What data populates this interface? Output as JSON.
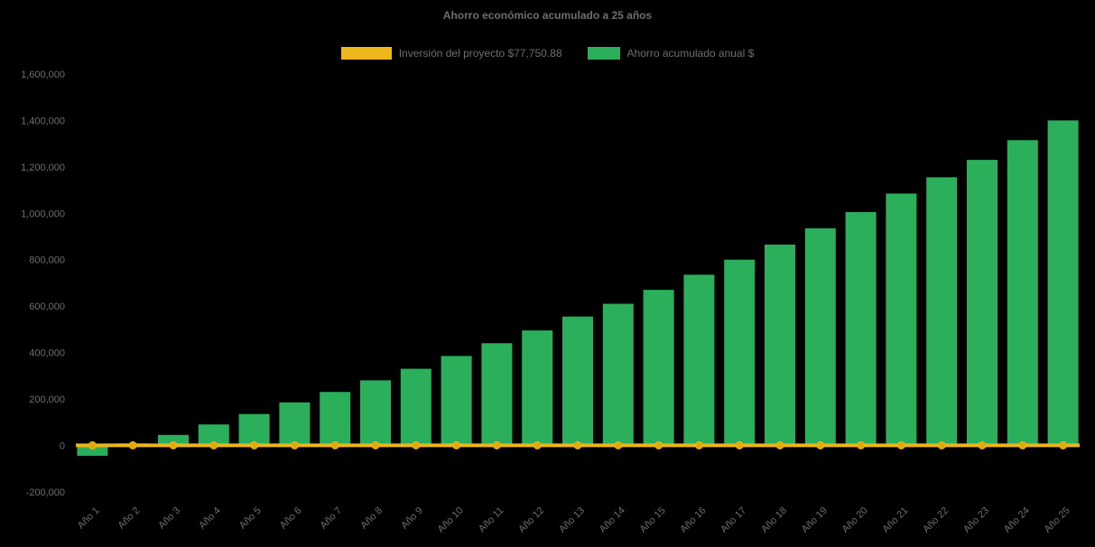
{
  "chart_data": {
    "type": "bar",
    "title": "Ahorro económico acumulado a 25 años",
    "categories": [
      "Año 1",
      "Año 2",
      "Año 3",
      "Año 4",
      "Año 5",
      "Año 6",
      "Año 7",
      "Año 8",
      "Año 9",
      "Año 10",
      "Año 11",
      "Año 12",
      "Año 13",
      "Año 14",
      "Año 15",
      "Año 16",
      "Año 17",
      "Año 18",
      "Año 19",
      "Año 20",
      "Año 21",
      "Año 22",
      "Año 23",
      "Año 24",
      "Año 25"
    ],
    "series": [
      {
        "name": "Inversión del proyecto $77,750.88",
        "type": "line",
        "color": "#EDB71B",
        "marker_color": "#E2A90C",
        "values": [
          0,
          0,
          0,
          0,
          0,
          0,
          0,
          0,
          0,
          0,
          0,
          0,
          0,
          0,
          0,
          0,
          0,
          0,
          0,
          0,
          0,
          0,
          0,
          0,
          0
        ]
      },
      {
        "name": "Ahorro acumulado anual $",
        "type": "bar",
        "color": "#2BAF5B",
        "values": [
          -45000,
          8000,
          45000,
          90000,
          135000,
          185000,
          230000,
          280000,
          330000,
          385000,
          440000,
          495000,
          555000,
          610000,
          670000,
          735000,
          800000,
          865000,
          935000,
          1005000,
          1085000,
          1155000,
          1230000,
          1315000,
          1400000
        ]
      }
    ],
    "ylim": [
      -200000,
      1600000
    ],
    "ytick_step": 200000,
    "xlabel": "",
    "ylabel": "",
    "grid": false,
    "legend_position": "top",
    "background_color": "#000000",
    "text_color": "#6e6e6e"
  }
}
